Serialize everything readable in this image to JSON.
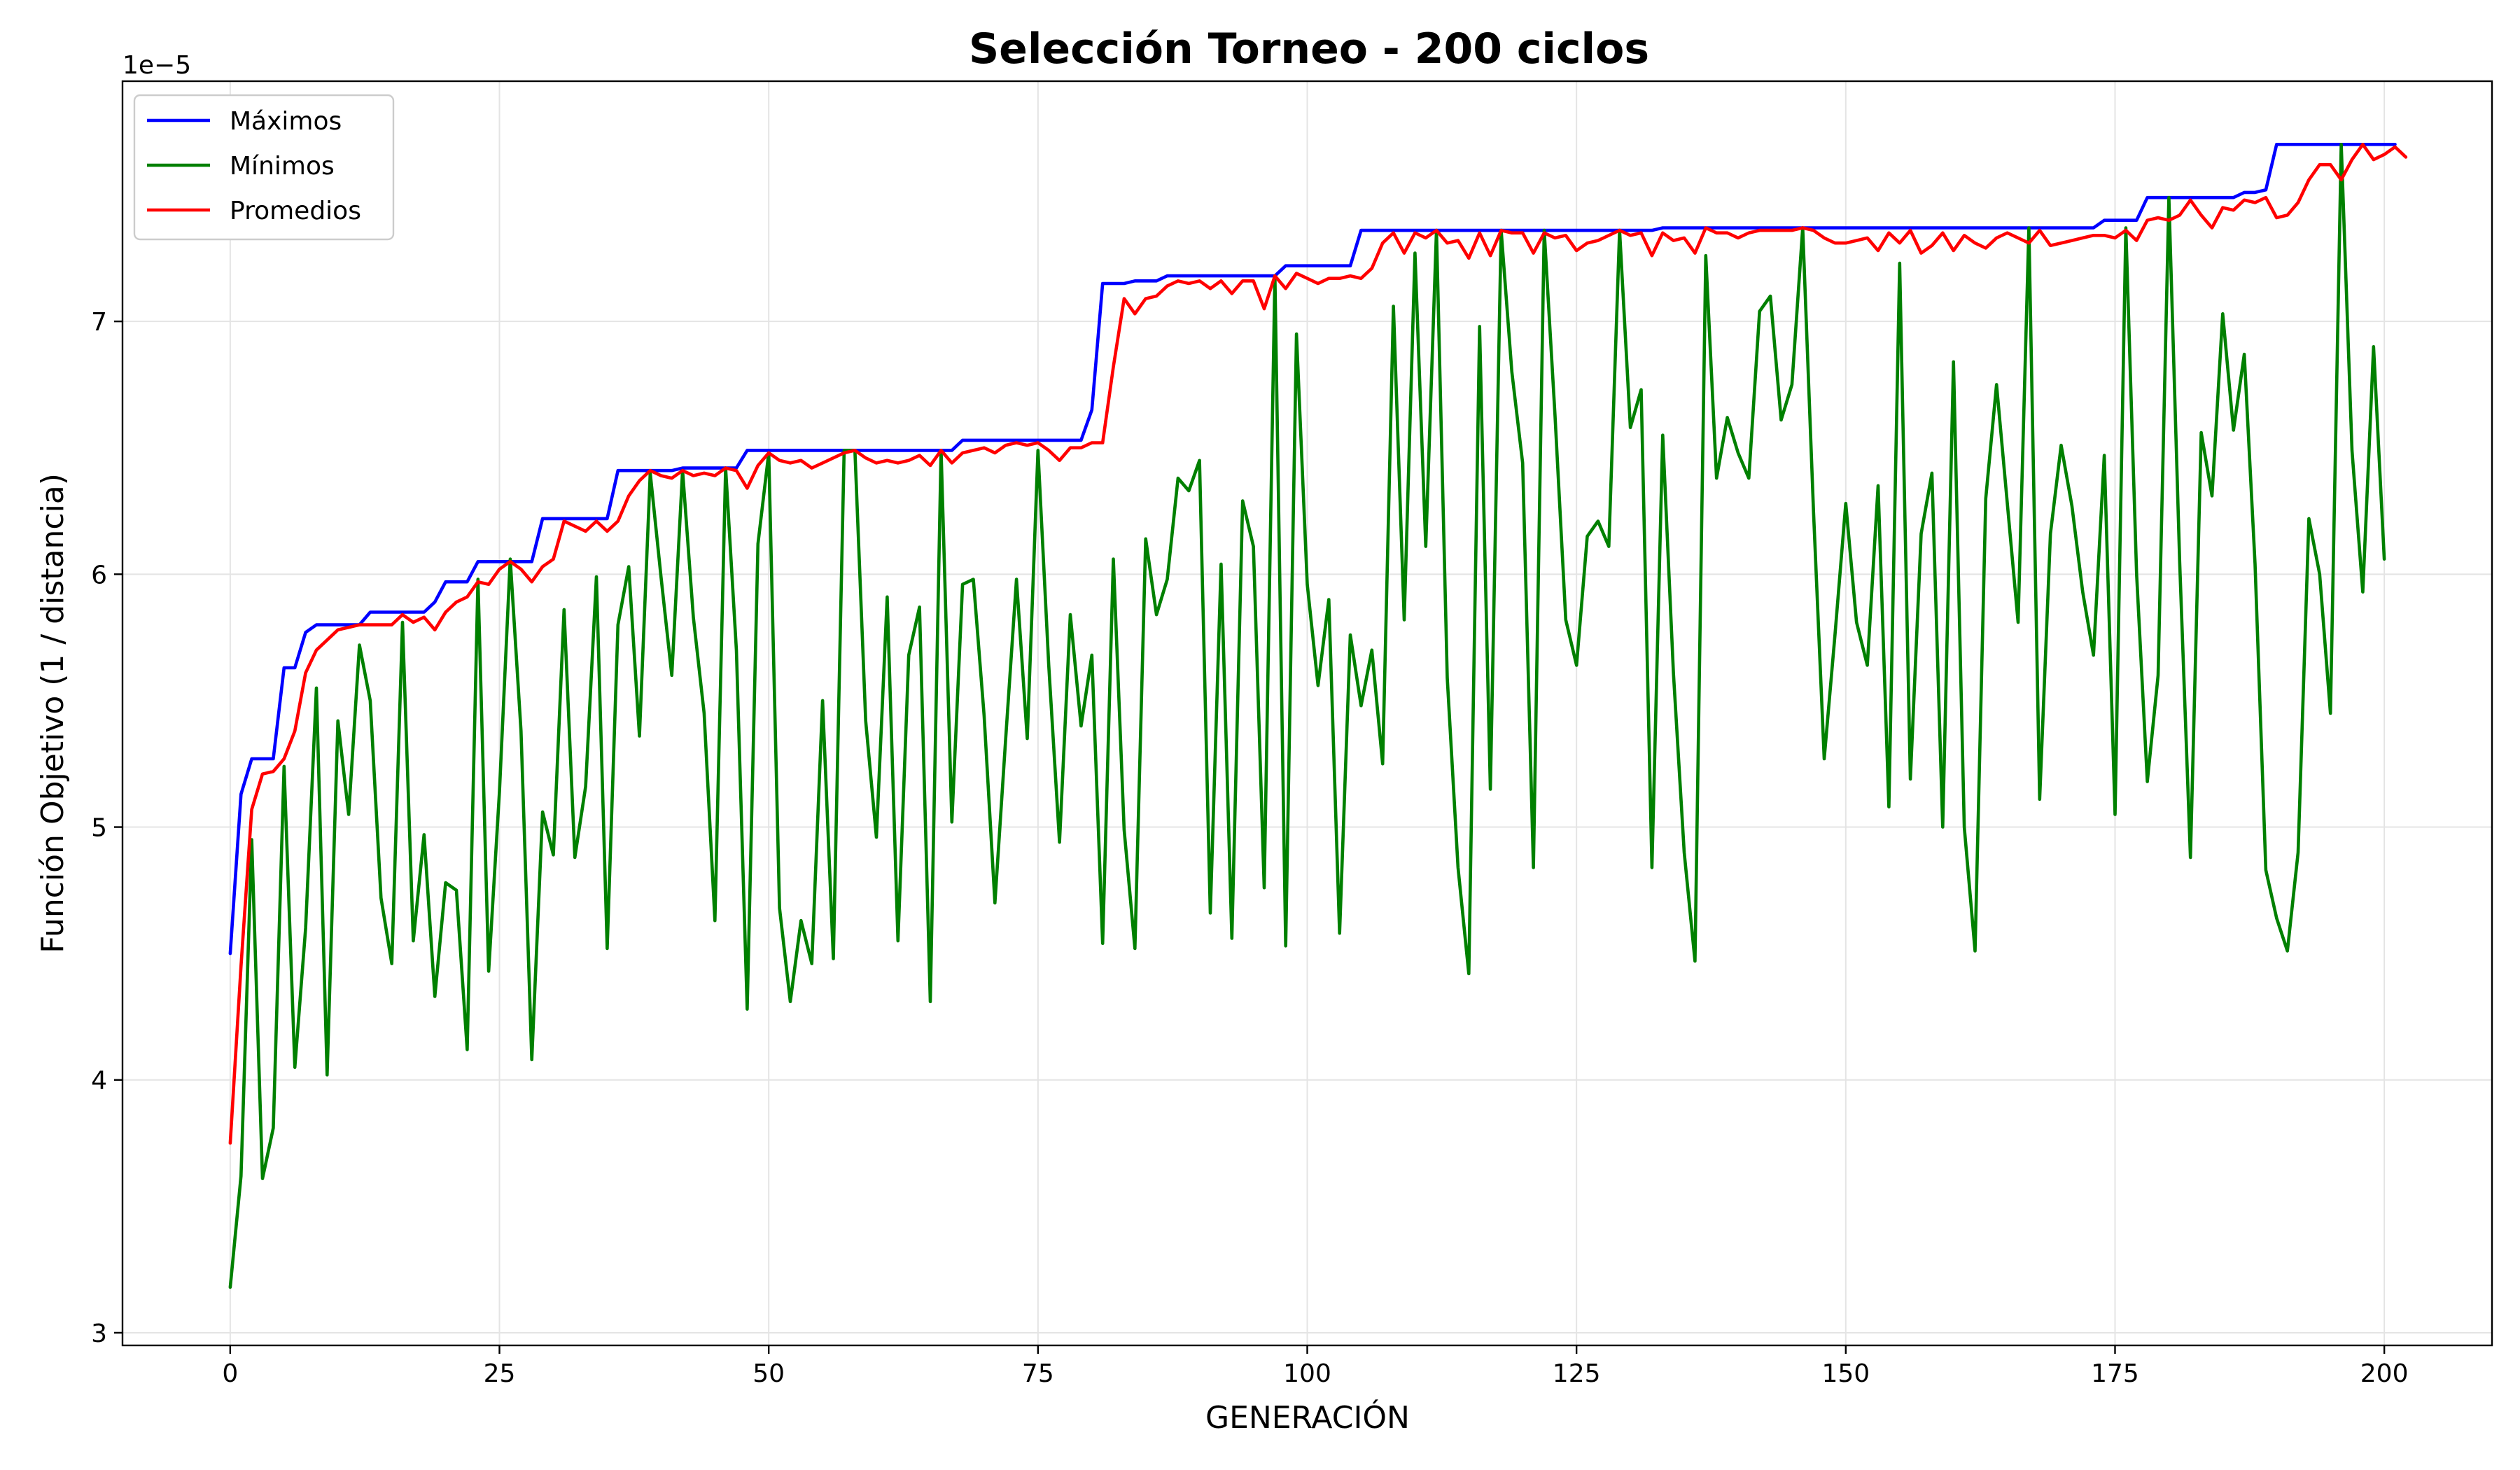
{
  "chart_data": {
    "type": "line",
    "title": "Selección Torneo - 200 ciclos",
    "xlabel": "GENERACIÓN",
    "ylabel": "Función Objetivo (1 / distancia)",
    "y_offset_label": "1e−5",
    "xlim": [
      -10,
      210
    ],
    "ylim": [
      2.95,
      7.95
    ],
    "x_ticks": [
      0,
      25,
      50,
      75,
      100,
      125,
      150,
      175,
      200
    ],
    "x_tick_labels": [
      "0",
      "25",
      "50",
      "75",
      "100",
      "125",
      "150",
      "175",
      "200"
    ],
    "y_ticks": [
      3,
      4,
      5,
      6,
      7
    ],
    "y_tick_labels": [
      "3",
      "4",
      "5",
      "6",
      "7"
    ],
    "grid": true,
    "legend_position": "top-left",
    "x": "0..200 (one value per generation)",
    "series": [
      {
        "name": "Máximos",
        "color": "#0000ff",
        "values": [
          4.5,
          5.13,
          5.27,
          5.27,
          5.27,
          5.63,
          5.63,
          5.77,
          5.8,
          5.8,
          5.8,
          5.8,
          5.8,
          5.85,
          5.85,
          5.85,
          5.85,
          5.85,
          5.85,
          5.89,
          5.97,
          5.97,
          5.97,
          6.05,
          6.05,
          6.05,
          6.05,
          6.05,
          6.05,
          6.22,
          6.22,
          6.22,
          6.22,
          6.22,
          6.22,
          6.22,
          6.41,
          6.41,
          6.41,
          6.41,
          6.41,
          6.41,
          6.42,
          6.42,
          6.42,
          6.42,
          6.42,
          6.42,
          6.49,
          6.49,
          6.49,
          6.49,
          6.49,
          6.49,
          6.49,
          6.49,
          6.49,
          6.49,
          6.49,
          6.49,
          6.49,
          6.49,
          6.49,
          6.49,
          6.49,
          6.49,
          6.49,
          6.49,
          6.53,
          6.53,
          6.53,
          6.53,
          6.53,
          6.53,
          6.53,
          6.53,
          6.53,
          6.53,
          6.53,
          6.53,
          6.65,
          7.15,
          7.15,
          7.15,
          7.16,
          7.16,
          7.16,
          7.18,
          7.18,
          7.18,
          7.18,
          7.18,
          7.18,
          7.18,
          7.18,
          7.18,
          7.18,
          7.18,
          7.22,
          7.22,
          7.22,
          7.22,
          7.22,
          7.22,
          7.22,
          7.36,
          7.36,
          7.36,
          7.36,
          7.36,
          7.36,
          7.36,
          7.36,
          7.36,
          7.36,
          7.36,
          7.36,
          7.36,
          7.36,
          7.36,
          7.36,
          7.36,
          7.36,
          7.36,
          7.36,
          7.36,
          7.36,
          7.36,
          7.36,
          7.36,
          7.36,
          7.36,
          7.36,
          7.37,
          7.37,
          7.37,
          7.37,
          7.37,
          7.37,
          7.37,
          7.37,
          7.37,
          7.37,
          7.37,
          7.37,
          7.37,
          7.37,
          7.37,
          7.37,
          7.37,
          7.37,
          7.37,
          7.37,
          7.37,
          7.37,
          7.37,
          7.37,
          7.37,
          7.37,
          7.37,
          7.37,
          7.37,
          7.37,
          7.37,
          7.37,
          7.37,
          7.37,
          7.37,
          7.37,
          7.37,
          7.37,
          7.37,
          7.37,
          7.37,
          7.4,
          7.4,
          7.4,
          7.4,
          7.49,
          7.49,
          7.49,
          7.49,
          7.49,
          7.49,
          7.49,
          7.49,
          7.49,
          7.51,
          7.51,
          7.52,
          7.7,
          7.7,
          7.7,
          7.7,
          7.7,
          7.7,
          7.7,
          7.7,
          7.7,
          7.7,
          7.7,
          7.7
        ]
      },
      {
        "name": "Mínimos",
        "color": "#008000",
        "values": [
          3.18,
          3.62,
          4.95,
          3.61,
          3.81,
          5.24,
          4.05,
          4.6,
          5.55,
          4.02,
          5.42,
          5.05,
          5.72,
          5.5,
          4.72,
          4.46,
          5.81,
          4.55,
          4.97,
          4.33,
          4.78,
          4.75,
          4.12,
          5.98,
          4.43,
          5.14,
          6.06,
          5.38,
          4.08,
          5.06,
          4.89,
          5.86,
          4.88,
          5.16,
          5.99,
          4.52,
          5.8,
          6.03,
          5.36,
          6.4,
          5.99,
          5.6,
          6.41,
          5.83,
          5.45,
          4.63,
          6.42,
          5.7,
          4.28,
          6.12,
          6.48,
          4.68,
          4.31,
          4.63,
          4.46,
          5.5,
          4.48,
          6.49,
          6.49,
          5.42,
          4.96,
          5.91,
          4.55,
          5.68,
          5.87,
          4.31,
          6.49,
          5.02,
          5.96,
          5.98,
          5.44,
          4.7,
          5.35,
          5.98,
          5.35,
          6.49,
          5.64,
          4.94,
          5.84,
          5.4,
          5.68,
          4.54,
          6.06,
          4.99,
          4.52,
          6.14,
          5.84,
          5.98,
          6.38,
          6.33,
          6.45,
          4.66,
          6.04,
          4.56,
          6.29,
          6.11,
          4.76,
          7.18,
          4.53,
          6.95,
          5.96,
          5.56,
          5.9,
          4.58,
          5.76,
          5.48,
          5.7,
          5.25,
          7.06,
          5.82,
          7.27,
          6.11,
          7.36,
          5.59,
          4.84,
          4.42,
          6.98,
          5.15,
          7.36,
          6.8,
          6.44,
          4.84,
          7.36,
          6.63,
          5.82,
          5.64,
          6.15,
          6.21,
          6.11,
          7.36,
          6.58,
          6.73,
          4.84,
          6.55,
          5.61,
          4.9,
          4.47,
          7.26,
          6.38,
          6.62,
          6.48,
          6.38,
          7.04,
          7.1,
          6.61,
          6.75,
          7.37,
          6.25,
          5.27,
          5.76,
          6.28,
          5.81,
          5.64,
          6.35,
          5.08,
          7.23,
          5.19,
          6.16,
          6.4,
          5.0,
          6.84,
          5.0,
          4.51,
          6.3,
          6.75,
          6.28,
          5.81,
          7.37,
          5.11,
          6.16,
          6.51,
          6.27,
          5.93,
          5.68,
          6.47,
          5.05,
          7.37,
          6.0,
          5.18,
          5.6,
          7.49,
          6.05,
          4.88,
          6.56,
          6.31,
          7.03,
          6.57,
          6.87,
          6.04,
          4.83,
          4.64,
          4.51,
          4.9,
          6.22,
          6.0,
          5.45,
          7.7,
          6.49,
          5.93,
          6.9,
          6.06
        ]
      },
      {
        "name": "Promedios",
        "color": "#ff0000",
        "values": [
          3.75,
          4.45,
          5.07,
          5.21,
          5.22,
          5.27,
          5.38,
          5.61,
          5.7,
          5.74,
          5.78,
          5.79,
          5.8,
          5.8,
          5.8,
          5.8,
          5.84,
          5.81,
          5.83,
          5.78,
          5.85,
          5.89,
          5.91,
          5.97,
          5.96,
          6.02,
          6.05,
          6.02,
          5.97,
          6.03,
          6.06,
          6.21,
          6.19,
          6.17,
          6.21,
          6.17,
          6.21,
          6.31,
          6.37,
          6.41,
          6.39,
          6.38,
          6.41,
          6.39,
          6.4,
          6.39,
          6.42,
          6.41,
          6.34,
          6.43,
          6.48,
          6.45,
          6.44,
          6.45,
          6.42,
          6.44,
          6.46,
          6.48,
          6.49,
          6.46,
          6.44,
          6.45,
          6.44,
          6.45,
          6.47,
          6.43,
          6.49,
          6.44,
          6.48,
          6.49,
          6.5,
          6.48,
          6.51,
          6.52,
          6.51,
          6.52,
          6.49,
          6.45,
          6.5,
          6.5,
          6.52,
          6.52,
          6.82,
          7.09,
          7.03,
          7.09,
          7.1,
          7.14,
          7.16,
          7.15,
          7.16,
          7.13,
          7.16,
          7.11,
          7.16,
          7.16,
          7.05,
          7.18,
          7.13,
          7.19,
          7.17,
          7.15,
          7.17,
          7.17,
          7.18,
          7.17,
          7.21,
          7.31,
          7.35,
          7.27,
          7.35,
          7.33,
          7.36,
          7.31,
          7.32,
          7.25,
          7.35,
          7.26,
          7.36,
          7.35,
          7.35,
          7.27,
          7.35,
          7.33,
          7.34,
          7.28,
          7.31,
          7.32,
          7.34,
          7.36,
          7.34,
          7.35,
          7.26,
          7.35,
          7.32,
          7.33,
          7.27,
          7.37,
          7.35,
          7.35,
          7.33,
          7.35,
          7.36,
          7.36,
          7.36,
          7.36,
          7.37,
          7.36,
          7.33,
          7.31,
          7.31,
          7.32,
          7.33,
          7.28,
          7.35,
          7.31,
          7.36,
          7.27,
          7.3,
          7.35,
          7.28,
          7.34,
          7.31,
          7.29,
          7.33,
          7.35,
          7.33,
          7.31,
          7.36,
          7.3,
          7.31,
          7.32,
          7.33,
          7.34,
          7.34,
          7.33,
          7.36,
          7.32,
          7.4,
          7.41,
          7.4,
          7.42,
          7.48,
          7.42,
          7.37,
          7.45,
          7.44,
          7.48,
          7.47,
          7.49,
          7.41,
          7.42,
          7.47,
          7.56,
          7.62,
          7.62,
          7.56,
          7.64,
          7.7,
          7.64,
          7.66,
          7.69,
          7.65
        ]
      }
    ]
  }
}
